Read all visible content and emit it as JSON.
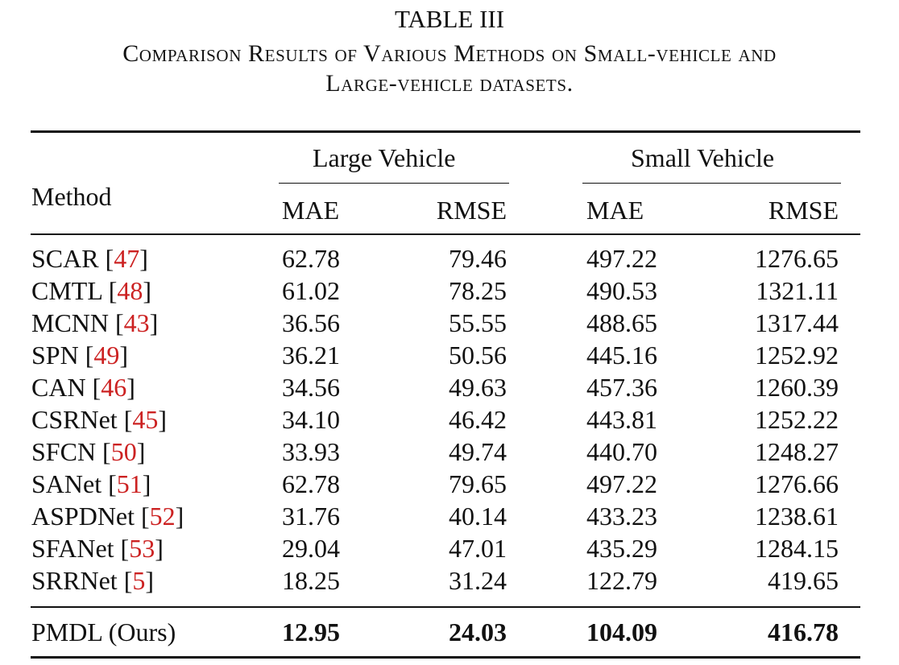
{
  "table": {
    "label": "TABLE III",
    "caption_line1": "Comparison Results of Various Methods on Small-vehicle and",
    "caption_line2": "Large-vehicle datasets.",
    "header": {
      "method": "Method",
      "group_large": "Large Vehicle",
      "group_small": "Small Vehicle",
      "large_mae": "MAE",
      "large_rmse": "RMSE",
      "small_mae": "MAE",
      "small_rmse": "RMSE"
    },
    "rows": [
      {
        "name": "SCAR [",
        "ref": "47",
        "close": "]",
        "large_mae": "62.78",
        "large_rmse": "79.46",
        "small_mae": "497.22",
        "small_rmse": "1276.65"
      },
      {
        "name": "CMTL [",
        "ref": "48",
        "close": "]",
        "large_mae": "61.02",
        "large_rmse": "78.25",
        "small_mae": "490.53",
        "small_rmse": "1321.11"
      },
      {
        "name": "MCNN [",
        "ref": "43",
        "close": "]",
        "large_mae": "36.56",
        "large_rmse": "55.55",
        "small_mae": "488.65",
        "small_rmse": "1317.44"
      },
      {
        "name": "SPN [",
        "ref": "49",
        "close": "]",
        "large_mae": "36.21",
        "large_rmse": "50.56",
        "small_mae": "445.16",
        "small_rmse": "1252.92"
      },
      {
        "name": "CAN [",
        "ref": "46",
        "close": "]",
        "large_mae": "34.56",
        "large_rmse": "49.63",
        "small_mae": "457.36",
        "small_rmse": "1260.39"
      },
      {
        "name": "CSRNet [",
        "ref": "45",
        "close": "]",
        "large_mae": "34.10",
        "large_rmse": "46.42",
        "small_mae": "443.81",
        "small_rmse": "1252.22"
      },
      {
        "name": "SFCN [",
        "ref": "50",
        "close": "]",
        "large_mae": "33.93",
        "large_rmse": "49.74",
        "small_mae": "440.70",
        "small_rmse": "1248.27"
      },
      {
        "name": "SANet [",
        "ref": "51",
        "close": "]",
        "large_mae": "62.78",
        "large_rmse": "79.65",
        "small_mae": "497.22",
        "small_rmse": "1276.66"
      },
      {
        "name": "ASPDNet [",
        "ref": "52",
        "close": "]",
        "large_mae": "31.76",
        "large_rmse": "40.14",
        "small_mae": "433.23",
        "small_rmse": "1238.61"
      },
      {
        "name": "SFANet [",
        "ref": "53",
        "close": "]",
        "large_mae": "29.04",
        "large_rmse": "47.01",
        "small_mae": "435.29",
        "small_rmse": "1284.15"
      },
      {
        "name": "SRRNet [",
        "ref": "5",
        "close": "]",
        "large_mae": "18.25",
        "large_rmse": "31.24",
        "small_mae": "122.79",
        "small_rmse": "419.65"
      }
    ],
    "ours": {
      "name": "PMDL (Ours)",
      "large_mae": "12.95",
      "large_rmse": "24.03",
      "small_mae": "104.09",
      "small_rmse": "416.78"
    },
    "ref_color": "#cc2222"
  }
}
